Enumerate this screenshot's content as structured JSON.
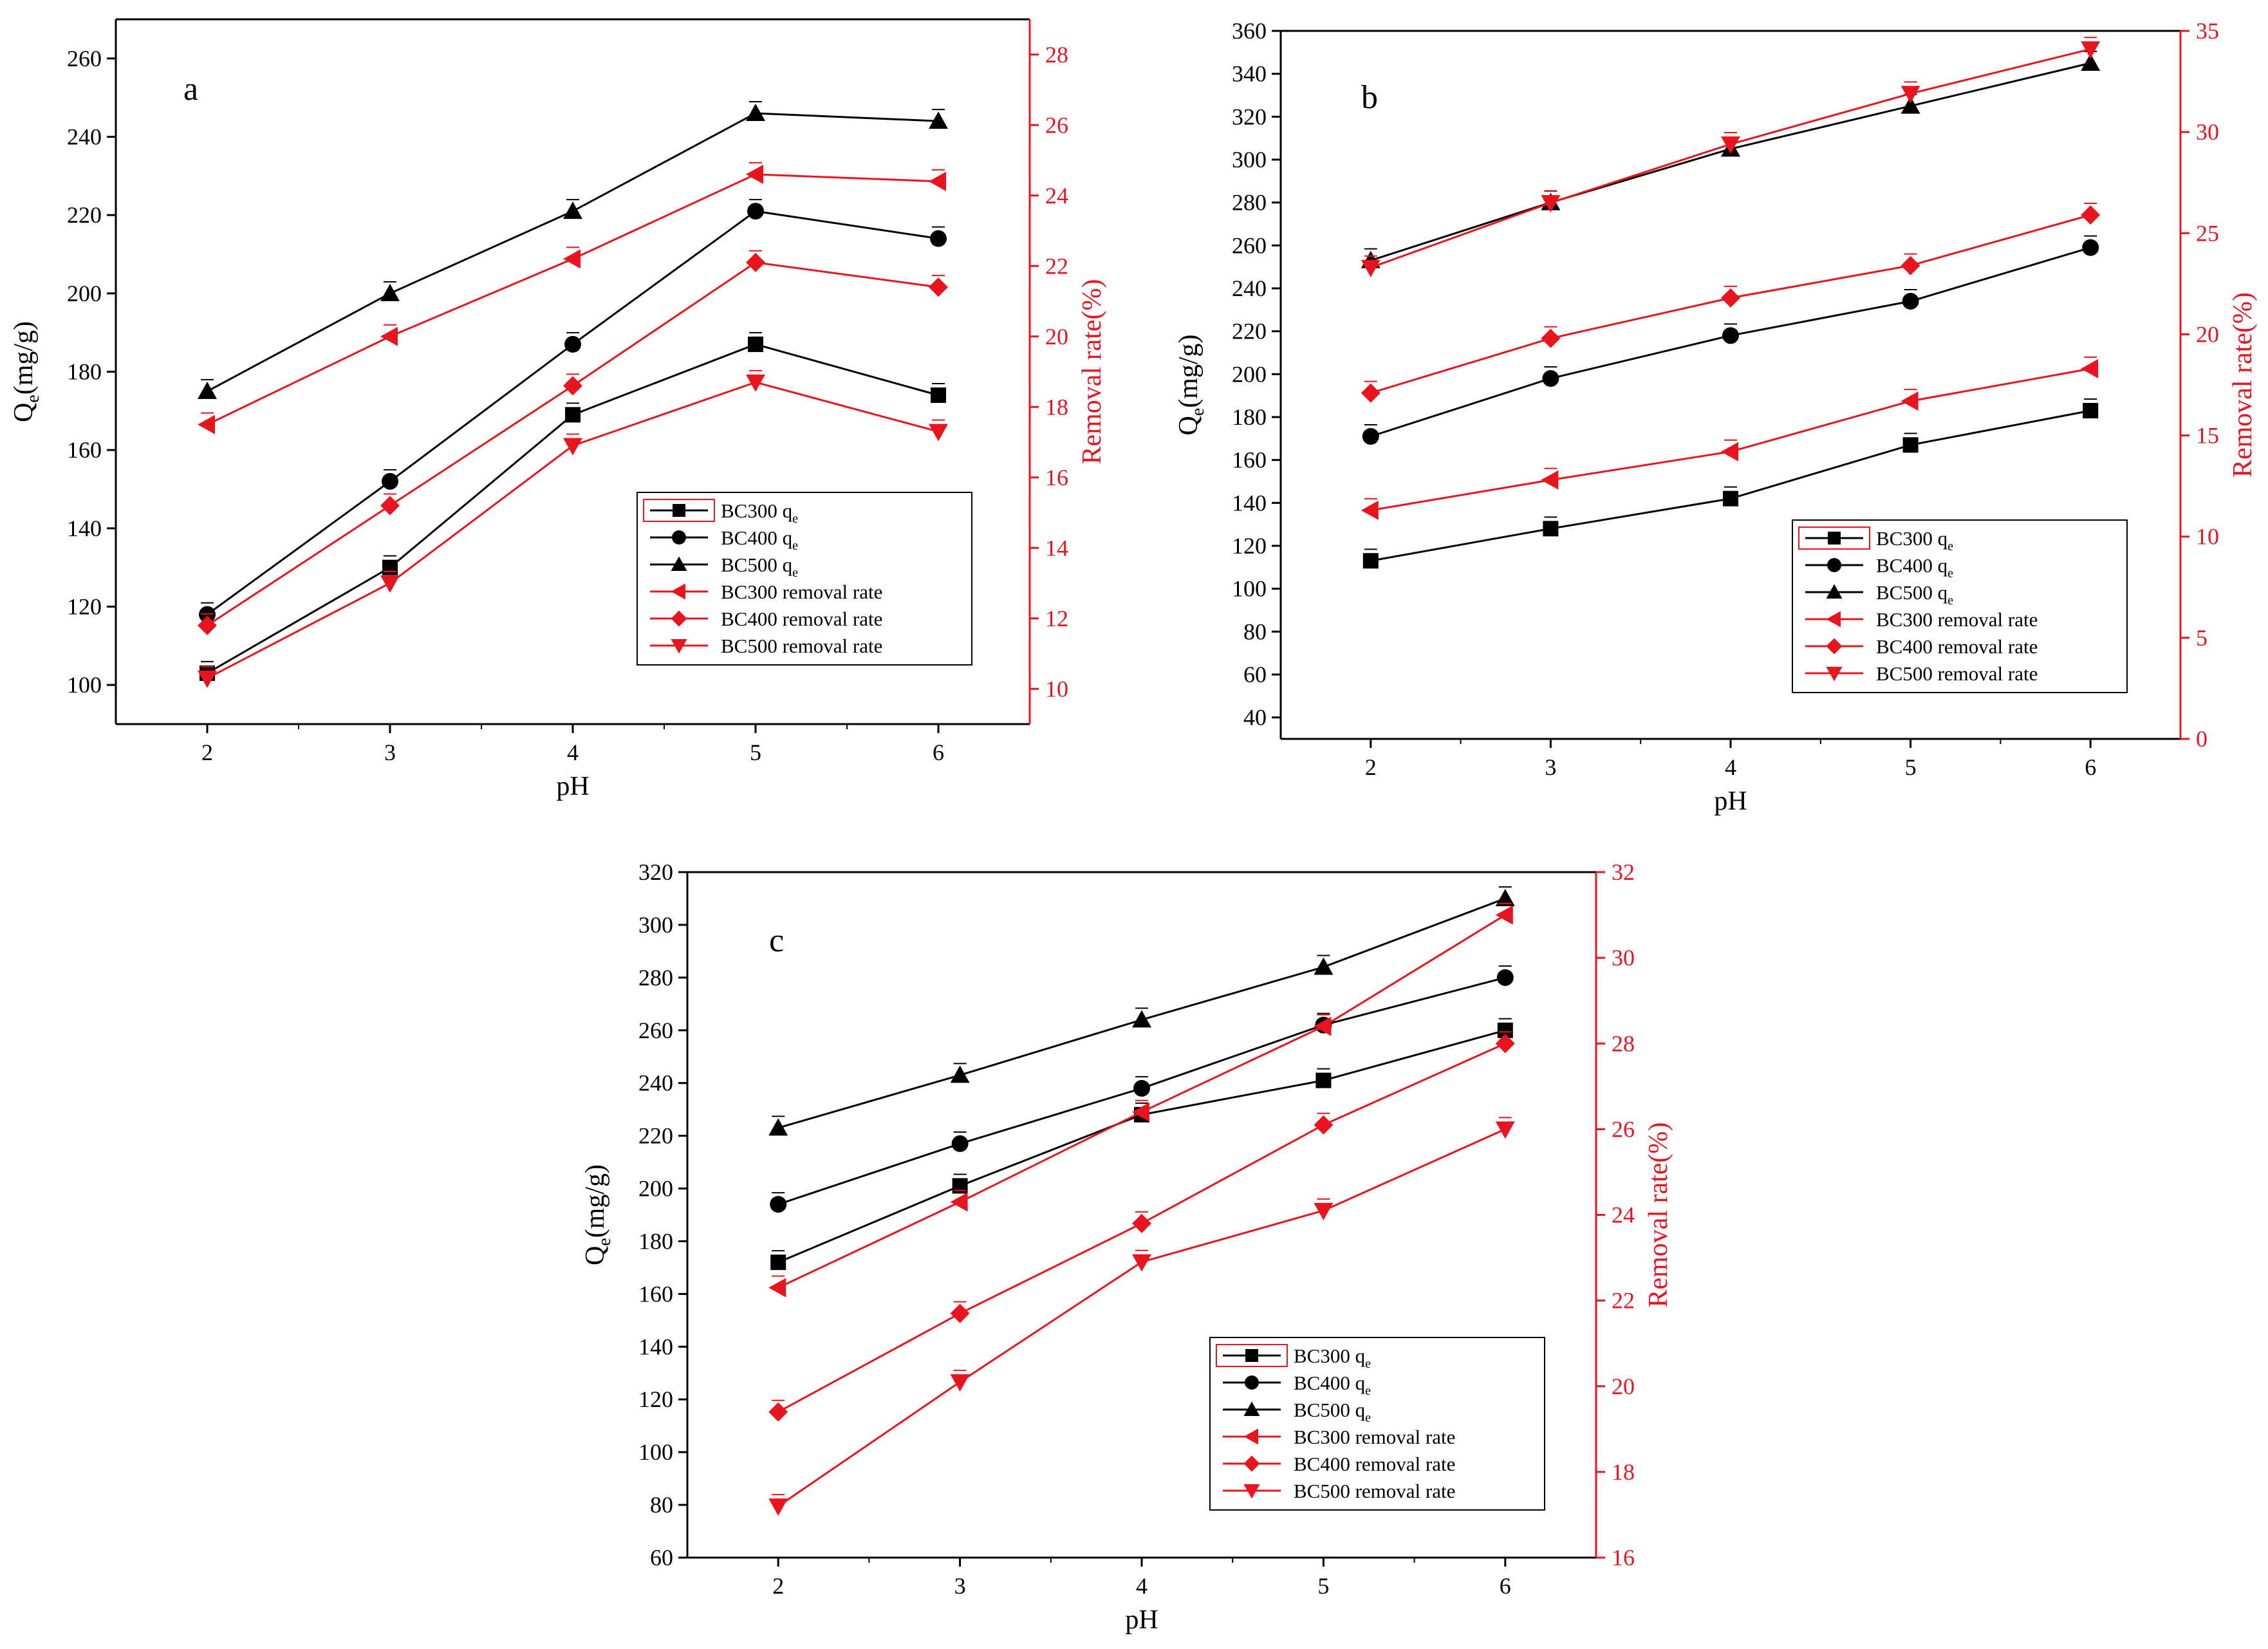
{
  "colors": {
    "black": "#000000",
    "red": "#e8141e"
  },
  "chart_data": [
    {
      "type": "line",
      "panel": "a",
      "x": [
        2,
        3,
        4,
        5,
        6
      ],
      "xlabel": "pH",
      "ylabel_main": "Q",
      "ylabel_sub": "e",
      "ylabel_rest": "(mg/g)",
      "ylabel_right": "Removal rate(%)",
      "left_axis": {
        "min": 90,
        "max": 270,
        "ticks": [
          100,
          120,
          140,
          160,
          180,
          200,
          220,
          240,
          260
        ]
      },
      "right_axis": {
        "min": 9,
        "max": 29,
        "ticks": [
          10,
          12,
          14,
          16,
          18,
          20,
          22,
          24,
          26,
          28
        ]
      },
      "series": [
        {
          "name": "BC300 q",
          "sub": "e",
          "axis": "left",
          "marker": "square",
          "color": "black",
          "values": [
            103,
            130,
            169,
            187,
            174
          ]
        },
        {
          "name": "BC400 q",
          "sub": "e",
          "axis": "left",
          "marker": "circle",
          "color": "black",
          "values": [
            118,
            152,
            187,
            221,
            214
          ]
        },
        {
          "name": "BC500 q",
          "sub": "e",
          "axis": "left",
          "marker": "triangle-up",
          "color": "black",
          "values": [
            175,
            200,
            221,
            246,
            244
          ]
        },
        {
          "name": "BC300 removal rate",
          "axis": "right",
          "marker": "triangle-left",
          "color": "red",
          "values": [
            17.5,
            20.0,
            22.2,
            24.6,
            24.4
          ]
        },
        {
          "name": "BC400 removal rate",
          "axis": "right",
          "marker": "diamond",
          "color": "red",
          "values": [
            11.8,
            15.2,
            18.6,
            22.1,
            21.4
          ]
        },
        {
          "name": "BC500 removal rate",
          "axis": "right",
          "marker": "triangle-down",
          "color": "red",
          "values": [
            10.3,
            13.0,
            16.9,
            18.7,
            17.3
          ]
        }
      ]
    },
    {
      "type": "line",
      "panel": "b",
      "x": [
        2,
        3,
        4,
        5,
        6
      ],
      "xlabel": "pH",
      "ylabel_main": "Q",
      "ylabel_sub": "e",
      "ylabel_rest": "(mg/g)",
      "ylabel_right": "Removal rate(%)",
      "left_axis": {
        "min": 30,
        "max": 360,
        "ticks": [
          40,
          60,
          80,
          100,
          120,
          140,
          160,
          180,
          200,
          220,
          240,
          260,
          280,
          300,
          320,
          340,
          360
        ]
      },
      "right_axis": {
        "min": 0,
        "max": 35,
        "ticks": [
          0,
          5,
          10,
          15,
          20,
          25,
          30,
          35
        ]
      },
      "series": [
        {
          "name": "BC300 q",
          "sub": "e",
          "axis": "left",
          "marker": "square",
          "color": "black",
          "values": [
            113,
            128,
            142,
            167,
            183
          ]
        },
        {
          "name": "BC400 q",
          "sub": "e",
          "axis": "left",
          "marker": "circle",
          "color": "black",
          "values": [
            171,
            198,
            218,
            234,
            259
          ]
        },
        {
          "name": "BC500 q",
          "sub": "e",
          "axis": "left",
          "marker": "triangle-up",
          "color": "black",
          "values": [
            253,
            280,
            305,
            325,
            345
          ]
        },
        {
          "name": "BC300 removal rate",
          "axis": "right",
          "marker": "triangle-left",
          "color": "red",
          "values": [
            11.3,
            12.8,
            14.2,
            16.7,
            18.3
          ]
        },
        {
          "name": "BC400 removal rate",
          "axis": "right",
          "marker": "diamond",
          "color": "red",
          "values": [
            17.1,
            19.8,
            21.8,
            23.4,
            25.9
          ]
        },
        {
          "name": "BC500 removal rate",
          "axis": "right",
          "marker": "triangle-down",
          "color": "red",
          "values": [
            23.3,
            26.5,
            29.4,
            31.9,
            34.1
          ]
        }
      ]
    },
    {
      "type": "line",
      "panel": "c",
      "x": [
        2,
        3,
        4,
        5,
        6
      ],
      "xlabel": "pH",
      "ylabel_main": "Q",
      "ylabel_sub": "e",
      "ylabel_rest": "(mg/g)",
      "ylabel_right": "Removal rate(%)",
      "left_axis": {
        "min": 60,
        "max": 320,
        "ticks": [
          60,
          80,
          100,
          120,
          140,
          160,
          180,
          200,
          220,
          240,
          260,
          280,
          300,
          320
        ]
      },
      "right_axis": {
        "min": 16,
        "max": 32,
        "ticks": [
          16,
          18,
          20,
          22,
          24,
          26,
          28,
          30,
          32
        ]
      },
      "series": [
        {
          "name": "BC300 q",
          "sub": "e",
          "axis": "left",
          "marker": "square",
          "color": "black",
          "values": [
            172,
            201,
            228,
            241,
            260
          ]
        },
        {
          "name": "BC400 q",
          "sub": "e",
          "axis": "left",
          "marker": "circle",
          "color": "black",
          "values": [
            194,
            217,
            238,
            262,
            280
          ]
        },
        {
          "name": "BC500 q",
          "sub": "e",
          "axis": "left",
          "marker": "triangle-up",
          "color": "black",
          "values": [
            223,
            243,
            264,
            284,
            310
          ]
        },
        {
          "name": "BC300 removal rate",
          "axis": "right",
          "marker": "triangle-left",
          "color": "red",
          "values": [
            22.3,
            24.3,
            26.4,
            28.4,
            31.0
          ]
        },
        {
          "name": "BC400 removal rate",
          "axis": "right",
          "marker": "diamond",
          "color": "red",
          "values": [
            19.4,
            21.7,
            23.8,
            26.1,
            28.0
          ]
        },
        {
          "name": "BC500 removal rate",
          "axis": "right",
          "marker": "triangle-down",
          "color": "red",
          "values": [
            17.2,
            20.1,
            22.9,
            24.1,
            26.0
          ]
        }
      ]
    }
  ]
}
